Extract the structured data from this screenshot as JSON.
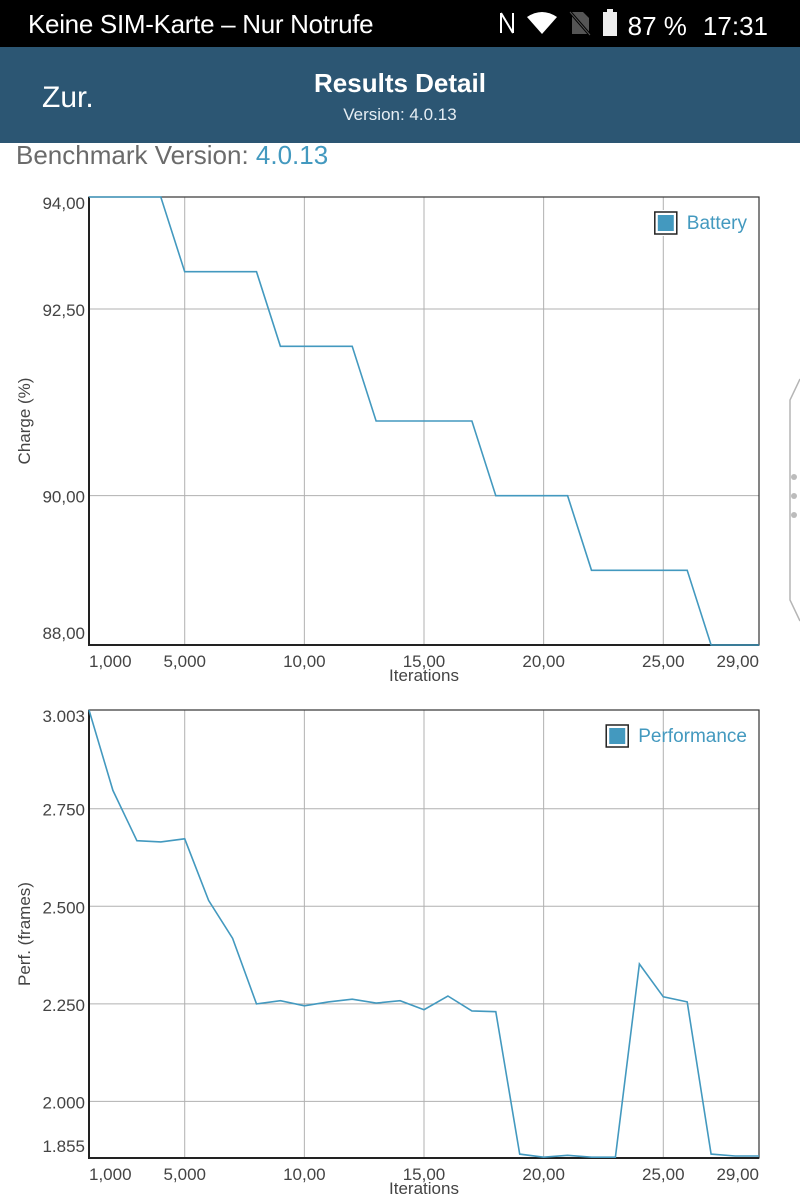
{
  "status_bar": {
    "carrier_text": "Keine SIM-Karte – Nur Notrufe",
    "icons": [
      "nfc-icon",
      "wifi-icon",
      "no-sim-icon",
      "battery-icon"
    ],
    "battery_percent": "87 %",
    "time": "17:31"
  },
  "app_bar": {
    "back_label": "Zur.",
    "title": "Results Detail",
    "subtitle": "Version: 4.0.13"
  },
  "benchmark": {
    "label": "Benchmark Version: ",
    "value": "4.0.13"
  },
  "colors": {
    "accent": "#4399bf",
    "app_bar": "#2c5673",
    "line": "#4399bf",
    "grid": "#b0b0b0",
    "axis": "#222222"
  },
  "chart_data": [
    {
      "type": "line",
      "title": "",
      "xlabel": "Iterations",
      "ylabel": "Charge (%)",
      "legend": "Battery",
      "legend_position": "top-right",
      "grid": true,
      "xlim": [
        1,
        29
      ],
      "ylim": [
        88.0,
        94.0
      ],
      "x_ticks": [
        1,
        5,
        10,
        15,
        20,
        25,
        29
      ],
      "x_tick_labels": [
        "1,000",
        "5,000",
        "10,00",
        "15,00",
        "20,00",
        "25,00",
        "29,00"
      ],
      "y_ticks": [
        94.0,
        92.5,
        90.0,
        88.0
      ],
      "y_tick_labels": [
        "94,00",
        "92,50",
        "90,00",
        "88,00"
      ],
      "y_grid": [
        92.5,
        90.0
      ],
      "x": [
        1,
        2,
        3,
        4,
        5,
        6,
        7,
        8,
        9,
        10,
        11,
        12,
        13,
        14,
        15,
        16,
        17,
        18,
        19,
        20,
        21,
        22,
        23,
        24,
        25,
        26,
        27,
        28,
        29
      ],
      "series": [
        {
          "name": "Battery",
          "values": [
            94,
            94,
            94,
            94,
            93,
            93,
            93,
            93,
            92,
            92,
            92,
            92,
            91,
            91,
            91,
            91,
            91,
            90,
            90,
            90,
            90,
            89,
            89,
            89,
            89,
            89,
            88,
            88,
            88
          ]
        }
      ]
    },
    {
      "type": "line",
      "title": "",
      "xlabel": "Iterations",
      "ylabel": "Perf. (frames)",
      "legend": "Performance",
      "legend_position": "top-right",
      "grid": true,
      "xlim": [
        1,
        29
      ],
      "ylim": [
        1.855,
        3.003
      ],
      "x_ticks": [
        1,
        5,
        10,
        15,
        20,
        25,
        29
      ],
      "x_tick_labels": [
        "1,000",
        "5,000",
        "10,00",
        "15,00",
        "20,00",
        "25,00",
        "29,00"
      ],
      "y_ticks": [
        3.003,
        2.75,
        2.5,
        2.25,
        2.0,
        1.855
      ],
      "y_tick_labels": [
        "3.003",
        "2.750",
        "2.500",
        "2.250",
        "2.000",
        "1.855"
      ],
      "y_grid": [
        2.75,
        2.5,
        2.25,
        2.0
      ],
      "x": [
        1,
        2,
        3,
        4,
        5,
        6,
        7,
        8,
        9,
        10,
        11,
        12,
        13,
        14,
        15,
        16,
        17,
        18,
        19,
        20,
        21,
        22,
        23,
        24,
        25,
        26,
        27,
        28,
        29
      ],
      "series": [
        {
          "name": "Performance",
          "values": [
            3.003,
            2.797,
            2.668,
            2.665,
            2.673,
            2.515,
            2.418,
            2.25,
            2.258,
            2.245,
            2.255,
            2.262,
            2.252,
            2.258,
            2.235,
            2.27,
            2.232,
            2.23,
            1.865,
            1.857,
            1.862,
            1.857,
            1.857,
            2.352,
            2.268,
            2.255,
            1.865,
            1.86,
            1.86
          ]
        }
      ]
    }
  ]
}
